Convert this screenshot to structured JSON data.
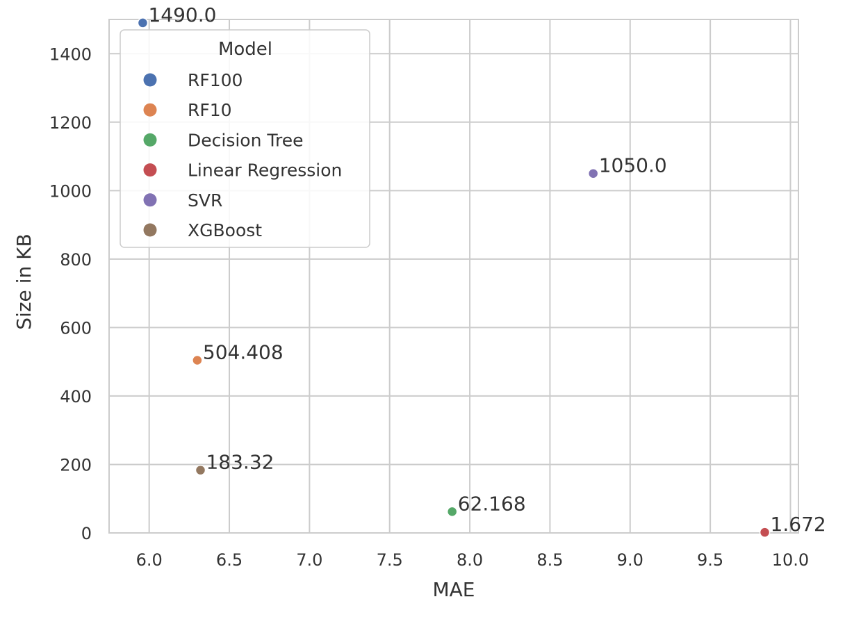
{
  "chart_data": {
    "type": "scatter",
    "title": "",
    "xlabel": "MAE",
    "ylabel": "Size in KB",
    "xlim": [
      5.75,
      10.05
    ],
    "ylim": [
      0,
      1500
    ],
    "xticks": [
      "6.0",
      "6.5",
      "7.0",
      "7.5",
      "8.0",
      "8.5",
      "9.0",
      "9.5",
      "10.0"
    ],
    "yticks": [
      "0",
      "200",
      "400",
      "600",
      "800",
      "1000",
      "1200",
      "1400"
    ],
    "grid": true,
    "legend": {
      "title": "Model",
      "position": "top-left"
    },
    "series": [
      {
        "name": "RF100",
        "color": "#4c72b0",
        "x": 5.96,
        "y": 1490.0,
        "label": "1490.0"
      },
      {
        "name": "RF10",
        "color": "#dd8452",
        "x": 6.3,
        "y": 504.408,
        "label": "504.408"
      },
      {
        "name": "Decision Tree",
        "color": "#55a868",
        "x": 7.89,
        "y": 62.168,
        "label": "62.168"
      },
      {
        "name": "Linear Regression",
        "color": "#c44e52",
        "x": 9.84,
        "y": 1.672,
        "label": "1.672"
      },
      {
        "name": "SVR",
        "color": "#8172b3",
        "x": 8.77,
        "y": 1050.0,
        "label": "1050.0"
      },
      {
        "name": "XGBoost",
        "color": "#937860",
        "x": 6.32,
        "y": 183.32,
        "label": "183.32"
      }
    ]
  }
}
